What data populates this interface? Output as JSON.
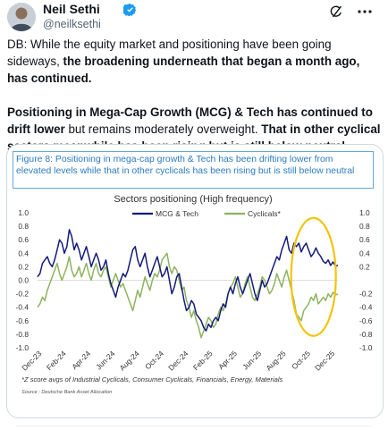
{
  "tweet": {
    "author_name": "Neil Sethi",
    "handle": "@neilksethi",
    "text_p1_a": "DB: While the equity market and positioning have been going sideways, ",
    "text_p1_b": "the broadening underneath that began a month ago, has continued.",
    "text_p2_a": "Positioning in Mega-Cap Growth (MCG) & Tech has continued to drift lower",
    "text_p2_b": " but remains moderately overweight. ",
    "text_p2_c": "That in other cyclical sectors meanwhile has been rising but is still below neutral."
  },
  "icons": {
    "verified": "verified-badge-icon",
    "grok": "grok-icon",
    "more": "more-options-icon",
    "avatar": "avatar"
  },
  "figure": {
    "caption": "Figure 8: Positioning in mega-cap growth & Tech has been drifting lower from elevated levels while that in other cyclicals has been rising but is still below neutral",
    "footnote": "*Z score avgs of Industrial Cyclicals, Consumer Cyclicals, Financials, Energy, Materials",
    "source": "Source : Deutsche Bank Asset Allocation"
  },
  "colors": {
    "mcg": "#141b7a",
    "cyclicals": "#8db35e",
    "highlight": "#f2c40e",
    "caption": "#2b7bc0"
  },
  "chart_data": {
    "type": "line",
    "title": "Sectors positioning (High frequency)",
    "ylim": [
      -1.0,
      1.0
    ],
    "y_ticks": [
      "1.0",
      "0.8",
      "0.6",
      "0.4",
      "0.2",
      "0.0",
      "-0.2",
      "-0.4",
      "-0.6",
      "-0.8",
      "-1.0"
    ],
    "y2_ticks": [
      "1.0",
      "0.8",
      "0.6",
      "0.4",
      "0.2",
      "",
      "-0.2",
      "-0.4",
      "-0.6",
      "-0.8",
      "-1.0"
    ],
    "x_ticks": [
      "Dec-23",
      "Feb-24",
      "Apr-24",
      "Jun-24",
      "Aug-24",
      "Oct-24",
      "Dec-24",
      "Feb-25",
      "Apr-25",
      "Jun-25",
      "Aug-25",
      "Oct-25",
      "Dec-25"
    ],
    "legend_placement": "top-center",
    "series": [
      {
        "name": "MCG & Tech",
        "x": [
          0,
          0.2,
          0.4,
          0.6,
          0.8,
          1.0,
          1.2,
          1.4,
          1.6,
          1.8,
          2.0,
          2.2,
          2.4,
          2.6,
          2.8,
          3.0,
          3.2,
          3.4,
          3.6,
          3.8,
          4.0,
          4.2,
          4.4,
          4.6,
          4.8,
          5.0,
          5.2,
          5.4,
          5.6,
          5.8,
          6.0,
          6.2,
          6.4,
          6.6,
          6.8,
          7.0,
          7.2,
          7.4,
          7.6,
          7.8,
          8.0,
          8.2,
          8.4,
          8.6,
          8.8,
          9.0,
          9.2,
          9.4,
          9.6,
          9.8,
          10.0,
          10.2,
          10.4,
          10.6,
          10.8,
          11.0,
          11.2,
          11.4,
          11.6,
          11.8,
          12.0,
          12.2,
          12.4,
          12.6,
          12.8,
          13.0,
          13.2,
          13.4,
          13.6,
          13.8,
          14.0,
          14.2,
          14.4,
          14.6,
          14.8,
          15.0,
          15.2,
          15.4,
          15.6,
          15.8,
          16.0,
          16.2,
          16.4,
          16.6,
          16.8,
          17.0,
          17.2,
          17.4,
          17.6,
          17.8,
          18.0,
          18.2,
          18.4,
          18.6,
          18.8,
          19.0,
          19.2,
          19.4,
          19.6,
          19.8,
          20.0,
          20.2,
          20.4,
          20.6,
          20.8,
          21.0,
          21.2,
          21.4,
          21.6,
          21.8,
          22.0,
          22.2,
          22.4,
          22.6,
          22.8,
          23.0,
          23.2,
          23.4,
          23.6,
          23.8,
          24.0,
          24.2,
          24.4,
          24.6
        ],
        "values": [
          0.05,
          0.1,
          0.25,
          0.3,
          0.35,
          0.25,
          0.2,
          0.3,
          0.45,
          0.6,
          0.55,
          0.4,
          0.5,
          0.75,
          0.65,
          0.45,
          0.55,
          0.45,
          0.3,
          0.4,
          0.5,
          0.35,
          0.2,
          0.3,
          0.4,
          0.3,
          0.15,
          0.2,
          0.3,
          0.1,
          -0.05,
          -0.15,
          -0.25,
          -0.1,
          0.0,
          0.1,
          0.05,
          0.15,
          0.3,
          0.45,
          0.5,
          0.3,
          0.2,
          0.3,
          0.4,
          0.2,
          0.05,
          0.15,
          0.25,
          0.35,
          0.2,
          0.05,
          0.1,
          0.2,
          0.0,
          -0.2,
          -0.1,
          0.05,
          0.1,
          -0.1,
          -0.3,
          -0.45,
          -0.4,
          -0.3,
          -0.35,
          -0.5,
          -0.55,
          -0.6,
          -0.7,
          -0.75,
          -0.65,
          -0.7,
          -0.6,
          -0.55,
          -0.6,
          -0.45,
          -0.35,
          -0.4,
          -0.2,
          -0.1,
          -0.2,
          -0.05,
          0.05,
          -0.1,
          -0.2,
          -0.1,
          0.0,
          0.1,
          -0.05,
          -0.2,
          -0.3,
          -0.15,
          0.0,
          -0.1,
          -0.05,
          0.05,
          0.15,
          0.25,
          0.35,
          0.3,
          0.45,
          0.55,
          0.65,
          0.45,
          0.4,
          0.55,
          0.5,
          0.55,
          0.42,
          0.5,
          0.55,
          0.45,
          0.35,
          0.4,
          0.48,
          0.4,
          0.35,
          0.28,
          0.25,
          0.3,
          0.22,
          0.27,
          0.21,
          0.22
        ]
      },
      {
        "name": "Cyclicals*",
        "x": [
          0,
          0.2,
          0.4,
          0.6,
          0.8,
          1.0,
          1.2,
          1.4,
          1.6,
          1.8,
          2.0,
          2.2,
          2.4,
          2.6,
          2.8,
          3.0,
          3.2,
          3.4,
          3.6,
          3.8,
          4.0,
          4.2,
          4.4,
          4.6,
          4.8,
          5.0,
          5.2,
          5.4,
          5.6,
          5.8,
          6.0,
          6.2,
          6.4,
          6.6,
          6.8,
          7.0,
          7.2,
          7.4,
          7.6,
          7.8,
          8.0,
          8.2,
          8.4,
          8.6,
          8.8,
          9.0,
          9.2,
          9.4,
          9.6,
          9.8,
          10.0,
          10.2,
          10.4,
          10.6,
          10.8,
          11.0,
          11.2,
          11.4,
          11.6,
          11.8,
          12.0,
          12.2,
          12.4,
          12.6,
          12.8,
          13.0,
          13.2,
          13.4,
          13.6,
          13.8,
          14.0,
          14.2,
          14.4,
          14.6,
          14.8,
          15.0,
          15.2,
          15.4,
          15.6,
          15.8,
          16.0,
          16.2,
          16.4,
          16.6,
          16.8,
          17.0,
          17.2,
          17.4,
          17.6,
          17.8,
          18.0,
          18.2,
          18.4,
          18.6,
          18.8,
          19.0,
          19.2,
          19.4,
          19.6,
          19.8,
          20.0,
          20.2,
          20.4,
          20.6,
          20.8,
          21.0,
          21.2,
          21.4,
          21.6,
          21.8,
          22.0,
          22.2,
          22.4,
          22.6,
          22.8,
          23.0,
          23.2,
          23.4,
          23.6,
          23.8,
          24.0,
          24.2,
          24.4,
          24.6
        ],
        "values": [
          -0.4,
          -0.35,
          -0.25,
          -0.3,
          -0.15,
          -0.05,
          0.05,
          0.15,
          0.25,
          0.1,
          0.0,
          0.1,
          0.2,
          0.35,
          0.15,
          0.05,
          0.1,
          0.2,
          0.05,
          0.15,
          0.25,
          0.1,
          0.0,
          0.15,
          0.25,
          0.1,
          0.05,
          0.15,
          0.2,
          0.05,
          -0.1,
          0.0,
          0.1,
          0.0,
          -0.1,
          -0.05,
          -0.15,
          -0.25,
          -0.35,
          -0.45,
          -0.3,
          -0.15,
          -0.25,
          -0.1,
          0.05,
          -0.05,
          -0.15,
          0.0,
          0.1,
          0.05,
          0.15,
          0.3,
          0.35,
          0.4,
          0.2,
          0.1,
          0.2,
          0.15,
          0.0,
          -0.15,
          -0.1,
          -0.3,
          -0.4,
          -0.55,
          -0.45,
          -0.6,
          -0.7,
          -0.85,
          -0.75,
          -0.65,
          -0.55,
          -0.6,
          -0.7,
          -0.65,
          -0.5,
          -0.4,
          -0.45,
          -0.35,
          -0.2,
          -0.1,
          -0.05,
          0.05,
          -0.1,
          -0.25,
          -0.2,
          -0.05,
          0.05,
          -0.1,
          -0.25,
          -0.3,
          -0.2,
          -0.1,
          0.05,
          0.0,
          -0.1,
          -0.2,
          -0.15,
          -0.05,
          0.1,
          0.0,
          -0.1,
          0.05,
          0.15,
          0.0,
          -0.15,
          -0.3,
          -0.5,
          -0.55,
          -0.6,
          -0.45,
          -0.4,
          -0.35,
          -0.25,
          -0.3,
          -0.2,
          -0.35,
          -0.3,
          -0.25,
          -0.3,
          -0.2,
          -0.25,
          -0.18,
          -0.22,
          -0.2
        ]
      }
    ]
  }
}
